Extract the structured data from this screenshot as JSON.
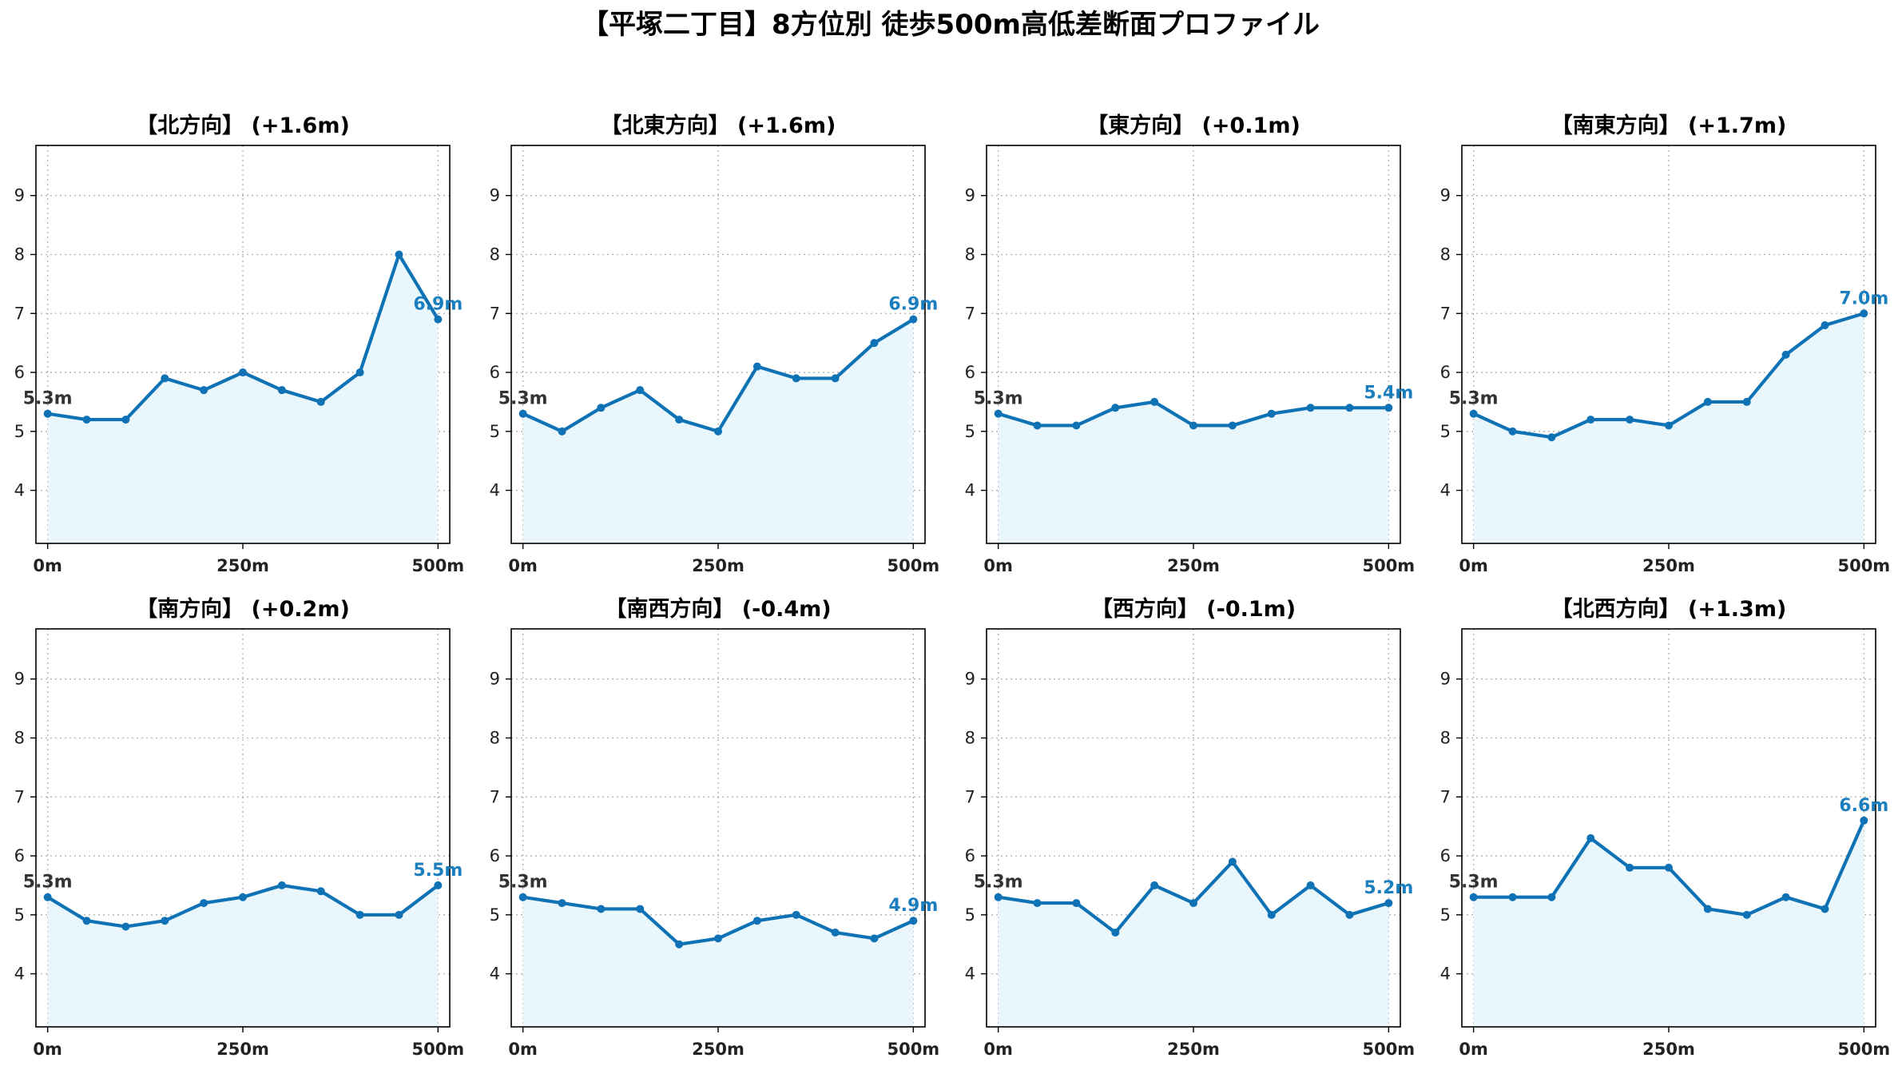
{
  "title": "【平塚二丁目】8方位別 徒歩500m高低差断面プロファイル",
  "colors": {
    "line": "#0e72b5",
    "fill": "#e9f6fc",
    "start_label": "#333333",
    "end_label": "#1b7fbf",
    "grid": "#b0b0b0",
    "axis": "#000000"
  },
  "chart_data": [
    {
      "type": "line",
      "title": "【北方向】 (+1.6m)",
      "x": [
        0,
        50,
        100,
        150,
        200,
        250,
        300,
        350,
        400,
        450,
        500
      ],
      "values": [
        5.3,
        5.2,
        5.2,
        5.9,
        5.7,
        6.0,
        5.7,
        5.5,
        6.0,
        8.0,
        6.9
      ],
      "start_label": "5.3m",
      "end_label": "6.9m",
      "xticks": [
        0,
        250,
        500
      ],
      "xtick_labels": [
        "0m",
        "250m",
        "500m"
      ],
      "yticks": [
        4,
        5,
        6,
        7,
        8,
        9
      ],
      "xlim": [
        -15,
        515
      ],
      "ylim": [
        3.1,
        9.85
      ],
      "grid": true
    },
    {
      "type": "line",
      "title": "【北東方向】 (+1.6m)",
      "x": [
        0,
        50,
        100,
        150,
        200,
        250,
        300,
        350,
        400,
        450,
        500
      ],
      "values": [
        5.3,
        5.0,
        5.4,
        5.7,
        5.2,
        5.0,
        6.1,
        5.9,
        5.9,
        6.5,
        6.9
      ],
      "start_label": "5.3m",
      "end_label": "6.9m",
      "xticks": [
        0,
        250,
        500
      ],
      "xtick_labels": [
        "0m",
        "250m",
        "500m"
      ],
      "yticks": [
        4,
        5,
        6,
        7,
        8,
        9
      ],
      "xlim": [
        -15,
        515
      ],
      "ylim": [
        3.1,
        9.85
      ],
      "grid": true
    },
    {
      "type": "line",
      "title": "【東方向】 (+0.1m)",
      "x": [
        0,
        50,
        100,
        150,
        200,
        250,
        300,
        350,
        400,
        450,
        500
      ],
      "values": [
        5.3,
        5.1,
        5.1,
        5.4,
        5.5,
        5.1,
        5.1,
        5.3,
        5.4,
        5.4,
        5.4
      ],
      "start_label": "5.3m",
      "end_label": "5.4m",
      "xticks": [
        0,
        250,
        500
      ],
      "xtick_labels": [
        "0m",
        "250m",
        "500m"
      ],
      "yticks": [
        4,
        5,
        6,
        7,
        8,
        9
      ],
      "xlim": [
        -15,
        515
      ],
      "ylim": [
        3.1,
        9.85
      ],
      "grid": true
    },
    {
      "type": "line",
      "title": "【南東方向】 (+1.7m)",
      "x": [
        0,
        50,
        100,
        150,
        200,
        250,
        300,
        350,
        400,
        450,
        500
      ],
      "values": [
        5.3,
        5.0,
        4.9,
        5.2,
        5.2,
        5.1,
        5.5,
        5.5,
        6.3,
        6.8,
        7.0
      ],
      "start_label": "5.3m",
      "end_label": "7.0m",
      "xticks": [
        0,
        250,
        500
      ],
      "xtick_labels": [
        "0m",
        "250m",
        "500m"
      ],
      "yticks": [
        4,
        5,
        6,
        7,
        8,
        9
      ],
      "xlim": [
        -15,
        515
      ],
      "ylim": [
        3.1,
        9.85
      ],
      "grid": true
    },
    {
      "type": "line",
      "title": "【南方向】 (+0.2m)",
      "x": [
        0,
        50,
        100,
        150,
        200,
        250,
        300,
        350,
        400,
        450,
        500
      ],
      "values": [
        5.3,
        4.9,
        4.8,
        4.9,
        5.2,
        5.3,
        5.5,
        5.4,
        5.0,
        5.0,
        5.5
      ],
      "start_label": "5.3m",
      "end_label": "5.5m",
      "xticks": [
        0,
        250,
        500
      ],
      "xtick_labels": [
        "0m",
        "250m",
        "500m"
      ],
      "yticks": [
        4,
        5,
        6,
        7,
        8,
        9
      ],
      "xlim": [
        -15,
        515
      ],
      "ylim": [
        3.1,
        9.85
      ],
      "grid": true
    },
    {
      "type": "line",
      "title": "【南西方向】 (-0.4m)",
      "x": [
        0,
        50,
        100,
        150,
        200,
        250,
        300,
        350,
        400,
        450,
        500
      ],
      "values": [
        5.3,
        5.2,
        5.1,
        5.1,
        4.5,
        4.6,
        4.9,
        5.0,
        4.7,
        4.6,
        4.9
      ],
      "start_label": "5.3m",
      "end_label": "4.9m",
      "xticks": [
        0,
        250,
        500
      ],
      "xtick_labels": [
        "0m",
        "250m",
        "500m"
      ],
      "yticks": [
        4,
        5,
        6,
        7,
        8,
        9
      ],
      "xlim": [
        -15,
        515
      ],
      "ylim": [
        3.1,
        9.85
      ],
      "grid": true
    },
    {
      "type": "line",
      "title": "【西方向】 (-0.1m)",
      "x": [
        0,
        50,
        100,
        150,
        200,
        250,
        300,
        350,
        400,
        450,
        500
      ],
      "values": [
        5.3,
        5.2,
        5.2,
        4.7,
        5.5,
        5.2,
        5.9,
        5.0,
        5.5,
        5.0,
        5.2
      ],
      "start_label": "5.3m",
      "end_label": "5.2m",
      "xticks": [
        0,
        250,
        500
      ],
      "xtick_labels": [
        "0m",
        "250m",
        "500m"
      ],
      "yticks": [
        4,
        5,
        6,
        7,
        8,
        9
      ],
      "xlim": [
        -15,
        515
      ],
      "ylim": [
        3.1,
        9.85
      ],
      "grid": true
    },
    {
      "type": "line",
      "title": "【北西方向】 (+1.3m)",
      "x": [
        0,
        50,
        100,
        150,
        200,
        250,
        300,
        350,
        400,
        450,
        500
      ],
      "values": [
        5.3,
        5.3,
        5.3,
        6.3,
        5.8,
        5.8,
        5.1,
        5.0,
        5.3,
        5.1,
        6.6
      ],
      "start_label": "5.3m",
      "end_label": "6.6m",
      "xticks": [
        0,
        250,
        500
      ],
      "xtick_labels": [
        "0m",
        "250m",
        "500m"
      ],
      "yticks": [
        4,
        5,
        6,
        7,
        8,
        9
      ],
      "xlim": [
        -15,
        515
      ],
      "ylim": [
        3.1,
        9.85
      ],
      "grid": true
    }
  ]
}
